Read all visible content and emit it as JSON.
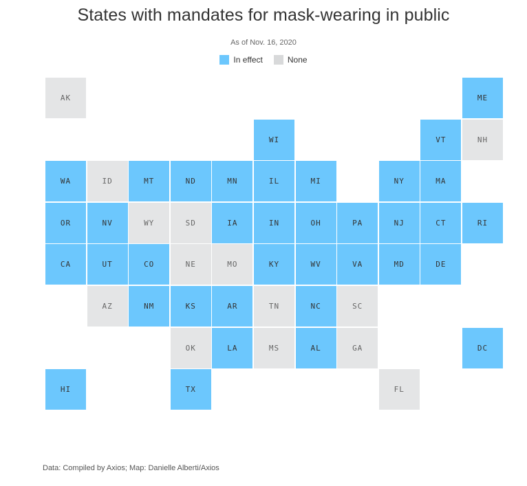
{
  "title": "States with mandates for mask-wearing in public",
  "subtitle": "As of Nov. 16, 2020",
  "legend": [
    {
      "label": "In effect",
      "color": "#6cc7fd"
    },
    {
      "label": "None",
      "color": "#d8d9da"
    }
  ],
  "colors": {
    "in_effect_fill": "#6cc7fd",
    "in_effect_text": "#333333",
    "none_fill": "#e4e5e6",
    "none_text": "#666666"
  },
  "states": [
    {
      "abbr": "AK",
      "status": "none",
      "row": 0,
      "col": 0
    },
    {
      "abbr": "ME",
      "status": "in_effect",
      "row": 0,
      "col": 10
    },
    {
      "abbr": "WI",
      "status": "in_effect",
      "row": 1,
      "col": 5
    },
    {
      "abbr": "VT",
      "status": "in_effect",
      "row": 1,
      "col": 9
    },
    {
      "abbr": "NH",
      "status": "none",
      "row": 1,
      "col": 10
    },
    {
      "abbr": "WA",
      "status": "in_effect",
      "row": 2,
      "col": 0
    },
    {
      "abbr": "ID",
      "status": "none",
      "row": 2,
      "col": 1
    },
    {
      "abbr": "MT",
      "status": "in_effect",
      "row": 2,
      "col": 2
    },
    {
      "abbr": "ND",
      "status": "in_effect",
      "row": 2,
      "col": 3
    },
    {
      "abbr": "MN",
      "status": "in_effect",
      "row": 2,
      "col": 4
    },
    {
      "abbr": "IL",
      "status": "in_effect",
      "row": 2,
      "col": 5
    },
    {
      "abbr": "MI",
      "status": "in_effect",
      "row": 2,
      "col": 6
    },
    {
      "abbr": "NY",
      "status": "in_effect",
      "row": 2,
      "col": 8
    },
    {
      "abbr": "MA",
      "status": "in_effect",
      "row": 2,
      "col": 9
    },
    {
      "abbr": "OR",
      "status": "in_effect",
      "row": 3,
      "col": 0
    },
    {
      "abbr": "NV",
      "status": "in_effect",
      "row": 3,
      "col": 1
    },
    {
      "abbr": "WY",
      "status": "none",
      "row": 3,
      "col": 2
    },
    {
      "abbr": "SD",
      "status": "none",
      "row": 3,
      "col": 3
    },
    {
      "abbr": "IA",
      "status": "in_effect",
      "row": 3,
      "col": 4
    },
    {
      "abbr": "IN",
      "status": "in_effect",
      "row": 3,
      "col": 5
    },
    {
      "abbr": "OH",
      "status": "in_effect",
      "row": 3,
      "col": 6
    },
    {
      "abbr": "PA",
      "status": "in_effect",
      "row": 3,
      "col": 7
    },
    {
      "abbr": "NJ",
      "status": "in_effect",
      "row": 3,
      "col": 8
    },
    {
      "abbr": "CT",
      "status": "in_effect",
      "row": 3,
      "col": 9
    },
    {
      "abbr": "RI",
      "status": "in_effect",
      "row": 3,
      "col": 10
    },
    {
      "abbr": "CA",
      "status": "in_effect",
      "row": 4,
      "col": 0
    },
    {
      "abbr": "UT",
      "status": "in_effect",
      "row": 4,
      "col": 1
    },
    {
      "abbr": "CO",
      "status": "in_effect",
      "row": 4,
      "col": 2
    },
    {
      "abbr": "NE",
      "status": "none",
      "row": 4,
      "col": 3
    },
    {
      "abbr": "MO",
      "status": "none",
      "row": 4,
      "col": 4
    },
    {
      "abbr": "KY",
      "status": "in_effect",
      "row": 4,
      "col": 5
    },
    {
      "abbr": "WV",
      "status": "in_effect",
      "row": 4,
      "col": 6
    },
    {
      "abbr": "VA",
      "status": "in_effect",
      "row": 4,
      "col": 7
    },
    {
      "abbr": "MD",
      "status": "in_effect",
      "row": 4,
      "col": 8
    },
    {
      "abbr": "DE",
      "status": "in_effect",
      "row": 4,
      "col": 9
    },
    {
      "abbr": "AZ",
      "status": "none",
      "row": 5,
      "col": 1
    },
    {
      "abbr": "NM",
      "status": "in_effect",
      "row": 5,
      "col": 2
    },
    {
      "abbr": "KS",
      "status": "in_effect",
      "row": 5,
      "col": 3
    },
    {
      "abbr": "AR",
      "status": "in_effect",
      "row": 5,
      "col": 4
    },
    {
      "abbr": "TN",
      "status": "none",
      "row": 5,
      "col": 5
    },
    {
      "abbr": "NC",
      "status": "in_effect",
      "row": 5,
      "col": 6
    },
    {
      "abbr": "SC",
      "status": "none",
      "row": 5,
      "col": 7
    },
    {
      "abbr": "OK",
      "status": "none",
      "row": 6,
      "col": 3
    },
    {
      "abbr": "LA",
      "status": "in_effect",
      "row": 6,
      "col": 4
    },
    {
      "abbr": "MS",
      "status": "none",
      "row": 6,
      "col": 5
    },
    {
      "abbr": "AL",
      "status": "in_effect",
      "row": 6,
      "col": 6
    },
    {
      "abbr": "GA",
      "status": "none",
      "row": 6,
      "col": 7
    },
    {
      "abbr": "DC",
      "status": "in_effect",
      "row": 6,
      "col": 10
    },
    {
      "abbr": "HI",
      "status": "in_effect",
      "row": 7,
      "col": 0
    },
    {
      "abbr": "TX",
      "status": "in_effect",
      "row": 7,
      "col": 3
    },
    {
      "abbr": "FL",
      "status": "none",
      "row": 7,
      "col": 8
    }
  ],
  "source": "Data: Compiled by Axios; Map: Danielle Alberti/Axios"
}
